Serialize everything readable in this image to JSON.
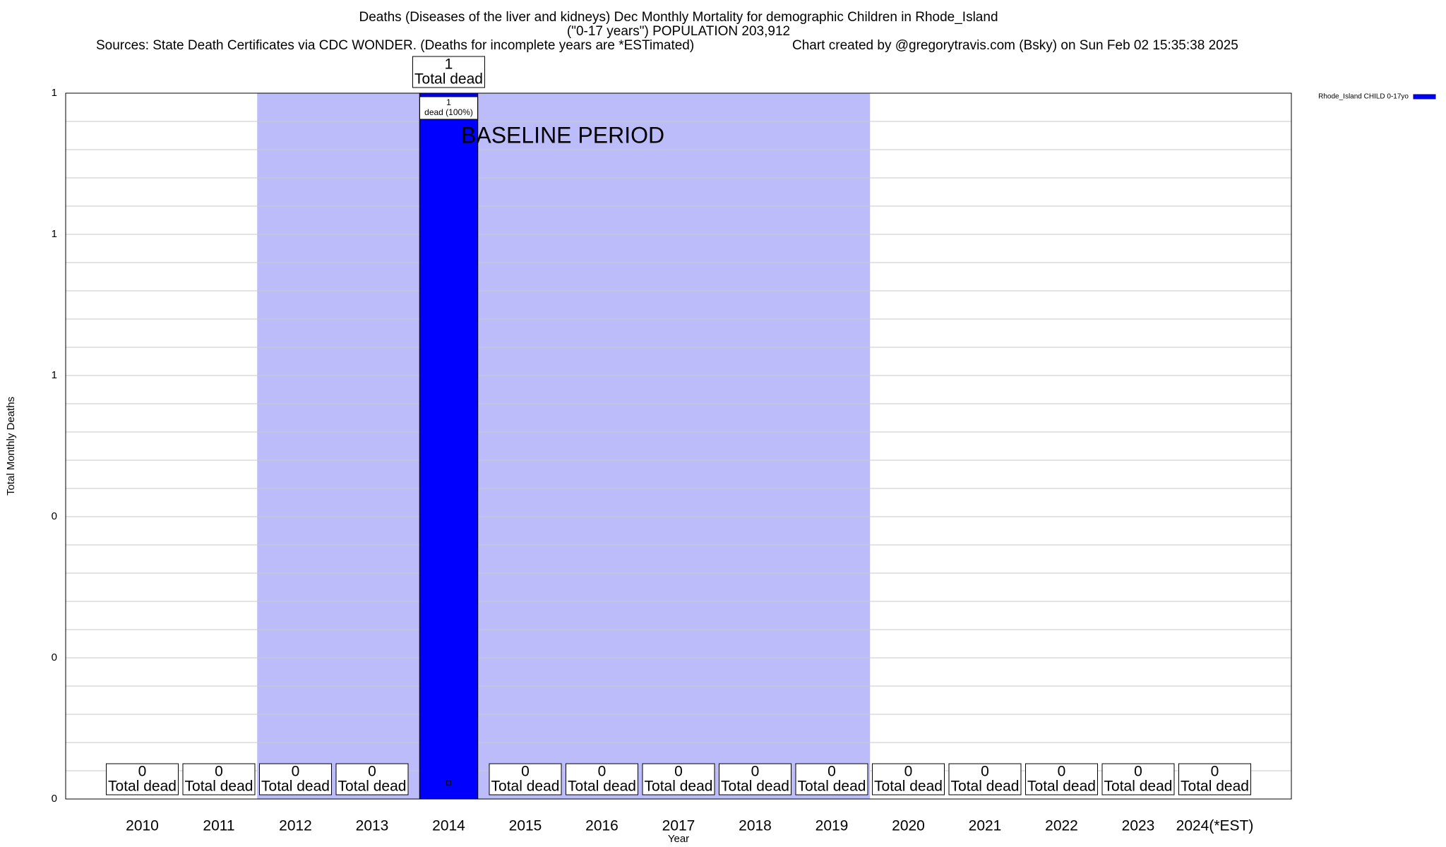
{
  "chart_data": {
    "type": "bar",
    "title": "Deaths (Diseases of the liver and kidneys) Dec Monthly Mortality for demographic Children in Rhode_Island",
    "subtitle": "(\"0-17 years\") POPULATION 203,912",
    "sources": "Sources: State Death Certificates via CDC WONDER. (Deaths for incomplete years are *ESTimated)",
    "credit": "Chart created by @gregorytravis.com (Bsky) on Sun Feb 02 15:35:38 2025",
    "x_label": "Year",
    "y_label": "Total Monthly Deaths",
    "categories": [
      "2010",
      "2011",
      "2012",
      "2013",
      "2014",
      "2015",
      "2016",
      "2017",
      "2018",
      "2019",
      "2020",
      "2021",
      "2022",
      "2023",
      "2024(*EST)"
    ],
    "series": [
      {
        "name": "Rhode_Island CHILD 0-17yo",
        "color": "#0000ff",
        "values": [
          0,
          0,
          0,
          0,
          1,
          0,
          0,
          0,
          0,
          0,
          0,
          0,
          0,
          0,
          0
        ]
      }
    ],
    "value_label_caption": "Total dead",
    "bar_labels": [
      null,
      null,
      null,
      null,
      "dead (100%)",
      null,
      null,
      null,
      null,
      null,
      null,
      null,
      null,
      null,
      null
    ],
    "baseline": {
      "label": "BASELINE PERIOD",
      "start": "2012",
      "end": "2019",
      "color": "#bcbcfa"
    },
    "ylim": [
      0,
      1
    ],
    "yticks": [
      0,
      {
        "value": 0.2,
        "label": "0"
      },
      {
        "value": 0.4,
        "label": "0"
      },
      {
        "value": 0.6,
        "label": "1"
      },
      {
        "value": 0.8,
        "label": "1"
      },
      1
    ],
    "minor_yticks": [
      0.04,
      0.08,
      0.12,
      0.16,
      0.24,
      0.28,
      0.32,
      0.36,
      0.44,
      0.48,
      0.52,
      0.56,
      0.64,
      0.68,
      0.72,
      0.76,
      0.84,
      0.88,
      0.92,
      0.96
    ],
    "grid": true,
    "legend": "top-right"
  }
}
